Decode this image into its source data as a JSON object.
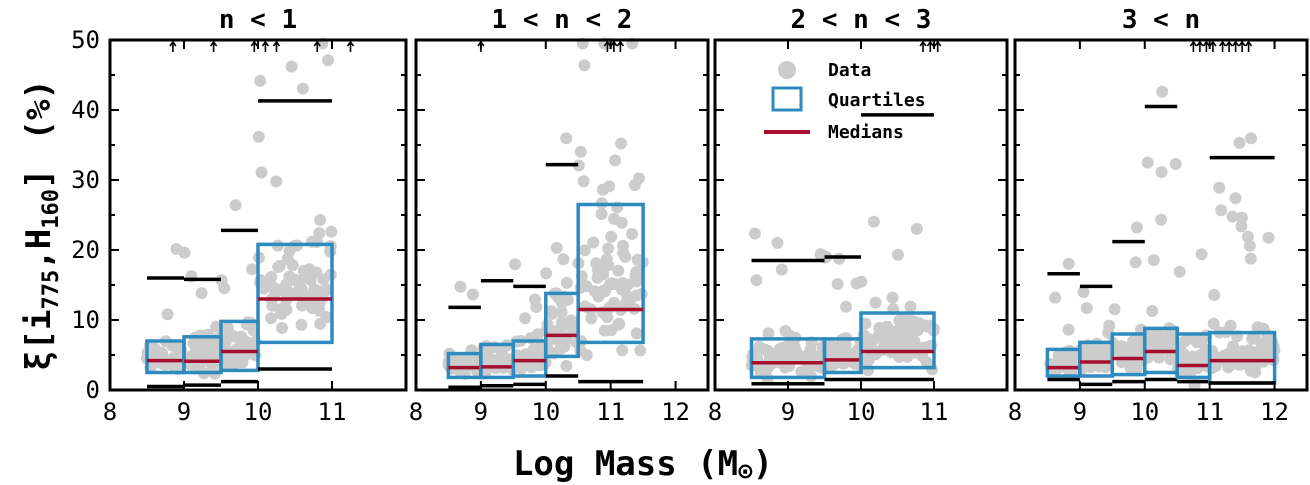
{
  "colors": {
    "data_points": "#cccccc",
    "quartile_box": "#2e8bc0",
    "median": "#a50f2d",
    "percentile_bar": "#000000",
    "frame": "#000000"
  },
  "chart_data": {
    "type": "box",
    "ylabel_main": "ξ[i",
    "ylabel_sub1": "775",
    "ylabel_comma": ",",
    "ylabel_H": "H",
    "ylabel_sub2": "160",
    "ylabel_close": "]",
    "ylabel_unit": "(%)",
    "xlabel_prefix": "Log Mass (M",
    "xlabel_symbol": "⊙",
    "xlabel_suffix": ")",
    "ylim": [
      0,
      50
    ],
    "yticks": [
      "0",
      "10",
      "20",
      "30",
      "40",
      "50"
    ],
    "legend": {
      "entries": [
        "Data",
        "Quartiles",
        "Medians"
      ],
      "placement": "top-right of panel 3"
    },
    "panels": [
      {
        "title": "n < 1",
        "xlim": [
          8,
          12
        ],
        "xticks": [
          "8",
          "9",
          "10",
          "11"
        ],
        "arrows_x": [
          8.85,
          9.4,
          9.95,
          10.1,
          10.25,
          10.8,
          11.25
        ],
        "bins": [
          {
            "x0": 8.5,
            "x1": 9.0,
            "q1": 2.5,
            "med": 4.2,
            "q3": 7.0,
            "p_lo": 0.5,
            "p_hi": 16.0
          },
          {
            "x0": 9.0,
            "x1": 9.5,
            "q1": 2.5,
            "med": 4.1,
            "q3": 7.6,
            "p_lo": 0.7,
            "p_hi": 15.8
          },
          {
            "x0": 9.5,
            "x1": 10.0,
            "q1": 2.8,
            "med": 5.5,
            "q3": 9.8,
            "p_lo": 1.2,
            "p_hi": 22.8
          },
          {
            "x0": 10.0,
            "x1": 11.0,
            "q1": 6.8,
            "med": 13.0,
            "q3": 20.8,
            "p_lo": 3.0,
            "p_hi": 41.3
          }
        ]
      },
      {
        "title": "1 < n < 2",
        "xlim": [
          8,
          12.5
        ],
        "xticks": [
          "8",
          "9",
          "10",
          "11",
          "12"
        ],
        "arrows_x": [
          9.0,
          10.95,
          11.05,
          11.15
        ],
        "bins": [
          {
            "x0": 8.5,
            "x1": 9.0,
            "q1": 1.8,
            "med": 3.2,
            "q3": 5.2,
            "p_lo": 0.4,
            "p_hi": 11.8
          },
          {
            "x0": 9.0,
            "x1": 9.5,
            "q1": 1.8,
            "med": 3.3,
            "q3": 6.5,
            "p_lo": 0.6,
            "p_hi": 15.6
          },
          {
            "x0": 9.5,
            "x1": 10.0,
            "q1": 2.0,
            "med": 4.2,
            "q3": 7.0,
            "p_lo": 0.8,
            "p_hi": 14.8
          },
          {
            "x0": 10.0,
            "x1": 10.5,
            "q1": 4.8,
            "med": 7.8,
            "q3": 13.8,
            "p_lo": 2.0,
            "p_hi": 32.2
          },
          {
            "x0": 10.5,
            "x1": 11.5,
            "q1": 6.8,
            "med": 11.5,
            "q3": 26.5,
            "p_lo": 1.2,
            "p_hi": 0
          }
        ]
      },
      {
        "title": "2 < n < 3",
        "xlim": [
          8,
          12
        ],
        "xticks": [
          "8",
          "9",
          "10",
          "11"
        ],
        "arrows_x": [
          10.85,
          10.95,
          11.05
        ],
        "bins": [
          {
            "x0": 8.5,
            "x1": 9.5,
            "q1": 1.8,
            "med": 3.9,
            "q3": 7.3,
            "p_lo": 0.9,
            "p_hi": 18.5
          },
          {
            "x0": 9.5,
            "x1": 10.0,
            "q1": 2.5,
            "med": 4.3,
            "q3": 7.3,
            "p_lo": 1.5,
            "p_hi": 19.0
          },
          {
            "x0": 10.0,
            "x1": 11.0,
            "q1": 3.2,
            "med": 5.5,
            "q3": 11.0,
            "p_lo": 1.5,
            "p_hi": 39.3
          }
        ]
      },
      {
        "title": "3 < n",
        "xlim": [
          8,
          12.5
        ],
        "xticks": [
          "8",
          "9",
          "10",
          "11",
          "12"
        ],
        "arrows_x": [
          10.75,
          10.85,
          10.95,
          11.05,
          11.2,
          11.3,
          11.4,
          11.5,
          11.6
        ],
        "bins": [
          {
            "x0": 8.5,
            "x1": 9.0,
            "q1": 2.0,
            "med": 3.2,
            "q3": 5.8,
            "p_lo": 1.5,
            "p_hi": 16.6
          },
          {
            "x0": 9.0,
            "x1": 9.5,
            "q1": 2.0,
            "med": 4.0,
            "q3": 6.8,
            "p_lo": 0.8,
            "p_hi": 14.8
          },
          {
            "x0": 9.5,
            "x1": 10.0,
            "q1": 2.2,
            "med": 4.5,
            "q3": 8.0,
            "p_lo": 1.2,
            "p_hi": 21.2
          },
          {
            "x0": 10.0,
            "x1": 10.5,
            "q1": 2.5,
            "med": 5.5,
            "q3": 8.8,
            "p_lo": 1.5,
            "p_hi": 40.5
          },
          {
            "x0": 10.5,
            "x1": 11.0,
            "q1": 1.8,
            "med": 3.5,
            "q3": 8.0,
            "p_lo": 1.2,
            "p_hi": 0
          },
          {
            "x0": 11.0,
            "x1": 12.0,
            "q1": 1.0,
            "med": 4.2,
            "q3": 8.2,
            "p_lo": 1.0,
            "p_hi": 33.2
          }
        ]
      }
    ]
  }
}
